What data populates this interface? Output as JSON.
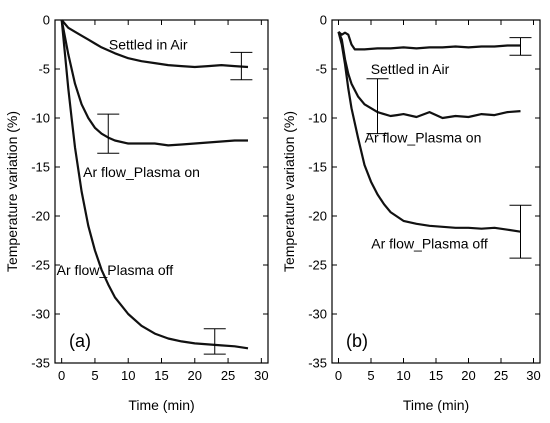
{
  "chart_data": [
    {
      "type": "line",
      "panel_label": "(a)",
      "xlabel": "Time (min)",
      "ylabel": "Temperature variation (%)",
      "xlim": [
        -1,
        31
      ],
      "ylim": [
        -35,
        0
      ],
      "xticks": [
        0,
        5,
        10,
        15,
        20,
        25,
        30
      ],
      "yticks": [
        0,
        -5,
        -10,
        -15,
        -20,
        -25,
        -30,
        -35
      ],
      "series": [
        {
          "name": "Settled in Air",
          "x": [
            0,
            1,
            2,
            3,
            4,
            5,
            6,
            8,
            10,
            12,
            14,
            16,
            18,
            20,
            22,
            24,
            26,
            28
          ],
          "y": [
            0,
            -0.8,
            -1.2,
            -1.6,
            -2.0,
            -2.4,
            -2.8,
            -3.4,
            -3.9,
            -4.2,
            -4.4,
            -4.6,
            -4.7,
            -4.8,
            -4.7,
            -4.6,
            -4.7,
            -4.8
          ],
          "error_bar": {
            "x": 27,
            "y": -4.7,
            "err": 1.4
          }
        },
        {
          "name": "Ar flow_Plasma on",
          "x": [
            0,
            1,
            2,
            3,
            4,
            5,
            6,
            7,
            8,
            10,
            12,
            14,
            16,
            18,
            20,
            22,
            24,
            26,
            28
          ],
          "y": [
            0,
            -3.5,
            -6.5,
            -8.6,
            -10.0,
            -11.0,
            -11.6,
            -12.0,
            -12.3,
            -12.6,
            -12.6,
            -12.6,
            -12.8,
            -12.7,
            -12.6,
            -12.5,
            -12.4,
            -12.3,
            -12.3
          ],
          "error_bar": {
            "x": 7,
            "y": -11.6,
            "err": 2.0
          }
        },
        {
          "name": "Ar flow_Plasma off",
          "x": [
            0,
            0.5,
            1,
            1.5,
            2,
            3,
            4,
            5,
            6,
            7,
            8,
            10,
            12,
            14,
            16,
            18,
            20,
            22,
            24,
            26,
            28
          ],
          "y": [
            0,
            -3.5,
            -7.0,
            -10.0,
            -13.0,
            -17.5,
            -21.0,
            -23.5,
            -25.5,
            -27.0,
            -28.3,
            -30.0,
            -31.2,
            -32.0,
            -32.5,
            -32.8,
            -33.0,
            -33.1,
            -33.2,
            -33.3,
            -33.5
          ],
          "error_bar": {
            "x": 23,
            "y": -32.8,
            "err": 1.3
          }
        }
      ],
      "annotations": [
        {
          "text": "Settled in Air",
          "x": 13,
          "y": -2.5
        },
        {
          "text": "Ar flow_Plasma on",
          "x": 12,
          "y": -15.5
        },
        {
          "text": "Ar flow_Plasma off",
          "x": 8,
          "y": -25.5
        }
      ]
    },
    {
      "type": "line",
      "panel_label": "(b)",
      "xlabel": "Time (min)",
      "ylabel": "Temperature variation (%)",
      "xlim": [
        -1,
        31
      ],
      "ylim": [
        -35,
        0
      ],
      "xticks": [
        0,
        5,
        10,
        15,
        20,
        25,
        30
      ],
      "yticks": [
        0,
        -5,
        -10,
        -15,
        -20,
        -25,
        -30,
        -35
      ],
      "series": [
        {
          "name": "Settled in Air",
          "x": [
            0,
            0.5,
            1,
            1.5,
            2,
            2.5,
            3,
            4,
            6,
            8,
            10,
            12,
            14,
            16,
            18,
            20,
            22,
            24,
            26,
            28
          ],
          "y": [
            -1.2,
            -1.5,
            -1.3,
            -1.5,
            -2.5,
            -3.0,
            -3.0,
            -3.0,
            -2.9,
            -2.9,
            -2.8,
            -2.9,
            -2.8,
            -2.8,
            -2.7,
            -2.8,
            -2.7,
            -2.7,
            -2.6,
            -2.6
          ],
          "error_bar": {
            "x": 28,
            "y": -2.7,
            "err": 0.9
          }
        },
        {
          "name": "Ar flow_Plasma on",
          "x": [
            0,
            0.5,
            1,
            1.5,
            2,
            3,
            4,
            5,
            6,
            7,
            8,
            9,
            10,
            12,
            14,
            16,
            18,
            20,
            22,
            24,
            26,
            28
          ],
          "y": [
            -1.2,
            -2.0,
            -4.0,
            -5.5,
            -6.5,
            -7.8,
            -8.6,
            -9.0,
            -9.4,
            -9.6,
            -9.8,
            -9.7,
            -9.6,
            -9.9,
            -9.4,
            -10.0,
            -9.8,
            -9.9,
            -9.6,
            -9.7,
            -9.4,
            -9.3
          ],
          "error_bar": {
            "x": 6,
            "y": -8.8,
            "err": 2.8
          }
        },
        {
          "name": "Ar flow_Plasma off",
          "x": [
            0,
            0.5,
            1,
            1.5,
            2,
            3,
            4,
            5,
            6,
            7,
            8,
            10,
            12,
            14,
            16,
            18,
            20,
            22,
            24,
            26,
            28
          ],
          "y": [
            -1.2,
            -2.5,
            -4.5,
            -7.0,
            -9.0,
            -12.0,
            -14.8,
            -16.5,
            -17.8,
            -18.8,
            -19.6,
            -20.5,
            -20.8,
            -21.0,
            -21.1,
            -21.2,
            -21.2,
            -21.3,
            -21.2,
            -21.4,
            -21.6
          ],
          "error_bar": {
            "x": 28,
            "y": -21.6,
            "err": 2.7
          }
        }
      ],
      "annotations": [
        {
          "text": "Settled in Air",
          "x": 11,
          "y": -5.0
        },
        {
          "text": "Ar flow_Plasma on",
          "x": 13,
          "y": -12.0
        },
        {
          "text": "Ar flow_Plasma off",
          "x": 14,
          "y": -22.8
        }
      ]
    }
  ]
}
